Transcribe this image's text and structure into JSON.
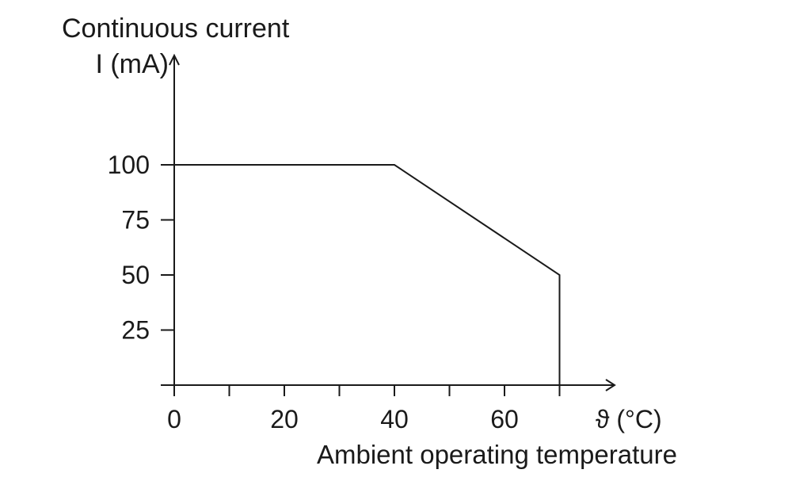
{
  "chart_data": {
    "type": "line",
    "ylabel_line1": "Continuous current",
    "ylabel_line2": "I (mA)",
    "xlabel": "Ambient operating temperature",
    "x_unit_label": "ϑ (°C)",
    "xlim": [
      0,
      80
    ],
    "ylim": [
      0,
      130
    ],
    "x_tick_labels": [
      {
        "value": 0,
        "label": "0"
      },
      {
        "value": 20,
        "label": "20"
      },
      {
        "value": 40,
        "label": "40"
      },
      {
        "value": 60,
        "label": "60"
      }
    ],
    "x_minor_ticks": [
      10,
      30,
      50,
      70
    ],
    "y_tick_labels": [
      {
        "value": 25,
        "label": "25"
      },
      {
        "value": 50,
        "label": "50"
      },
      {
        "value": 75,
        "label": "75"
      },
      {
        "value": 100,
        "label": "100"
      }
    ],
    "series": [
      {
        "points": [
          {
            "x": 0,
            "y": 100
          },
          {
            "x": 40,
            "y": 100
          },
          {
            "x": 70,
            "y": 50
          },
          {
            "x": 70,
            "y": 0
          }
        ]
      }
    ],
    "grid": false,
    "legend": "none"
  }
}
